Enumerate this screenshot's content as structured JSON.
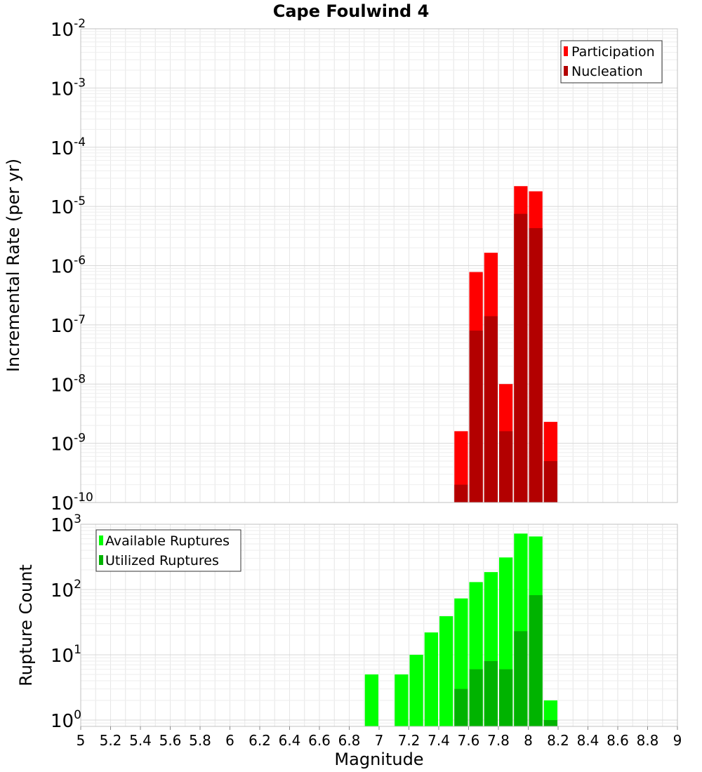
{
  "colors": {
    "participation": "#ff0000",
    "nucleation": "#b30000",
    "available": "#00ff00",
    "utilized": "#00b300",
    "grid": "#e6e6e6",
    "frame": "#c0c0c0"
  },
  "chart_data": [
    {
      "type": "bar",
      "title": "Cape Foulwind 4",
      "xlabel": "",
      "ylabel": "Incremental Rate (per yr)",
      "yscale": "log",
      "xlim": [
        5,
        9
      ],
      "ylim": [
        1e-10,
        0.01
      ],
      "y_tick_exponents": [
        "-10",
        "-9",
        "-8",
        "-7",
        "-6",
        "-5",
        "-4",
        "-3",
        "-2"
      ],
      "y_tick_base": "10",
      "grid": true,
      "legend_position": "top-right",
      "bin_width": 0.1,
      "x": [
        7.55,
        7.65,
        7.75,
        7.85,
        7.95,
        8.05,
        8.15
      ],
      "series": [
        {
          "name": "Participation",
          "values": [
            1.6e-09,
            7.8e-07,
            1.65e-06,
            1e-08,
            2.2e-05,
            1.8e-05,
            2.3e-09
          ]
        },
        {
          "name": "Nucleation",
          "values": [
            2e-10,
            8e-08,
            1.4e-07,
            1.6e-09,
            7.5e-06,
            4.3e-06,
            5e-10
          ]
        }
      ]
    },
    {
      "type": "bar",
      "title": "",
      "xlabel": "Magnitude",
      "ylabel": "Rupture Count",
      "yscale": "log",
      "xlim": [
        5,
        9
      ],
      "ylim": [
        0.8,
        1000
      ],
      "y_tick_exponents": [
        "0",
        "1",
        "2",
        "3"
      ],
      "y_tick_base": "10",
      "x_ticks": [
        "5",
        "5.2",
        "5.4",
        "5.6",
        "5.8",
        "6",
        "6.2",
        "6.4",
        "6.6",
        "6.8",
        "7",
        "7.2",
        "7.4",
        "7.6",
        "7.8",
        "8",
        "8.2",
        "8.4",
        "8.6",
        "8.8",
        "9"
      ],
      "grid": true,
      "legend_position": "top-left",
      "bin_width": 0.1,
      "x": [
        6.95,
        7.15,
        7.25,
        7.35,
        7.45,
        7.55,
        7.65,
        7.75,
        7.85,
        7.95,
        8.05,
        8.15
      ],
      "series": [
        {
          "name": "Available Ruptures",
          "values": [
            5,
            5,
            10,
            22,
            39,
            73,
            130,
            185,
            310,
            720,
            650,
            2
          ]
        },
        {
          "name": "Utilized Ruptures",
          "values": [
            null,
            null,
            null,
            null,
            null,
            3,
            6,
            8,
            6,
            23,
            82,
            1
          ]
        }
      ]
    }
  ]
}
